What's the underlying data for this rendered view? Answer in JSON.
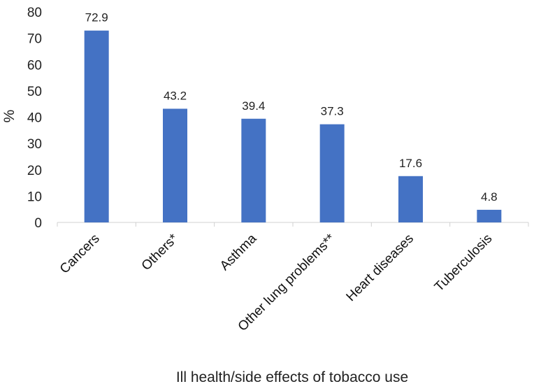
{
  "chart_data": {
    "type": "bar",
    "title": "",
    "xlabel": "Ill health/side effects of tobacco use",
    "ylabel": "%",
    "ylim": [
      0,
      80
    ],
    "yticks": [
      0,
      10,
      20,
      30,
      40,
      50,
      60,
      70,
      80
    ],
    "grid": false,
    "legend": "none",
    "bar_color": "#4472C4",
    "categories": [
      "Cancers",
      "Others*",
      "Asthma",
      "Other lung problems**",
      "Heart diseases",
      "Tuberculosis"
    ],
    "values": [
      72.9,
      43.2,
      39.4,
      37.3,
      17.6,
      4.8
    ],
    "data_labels": [
      "72.9",
      "43.2",
      "39.4",
      "37.3",
      "17.6",
      "4.8"
    ]
  }
}
